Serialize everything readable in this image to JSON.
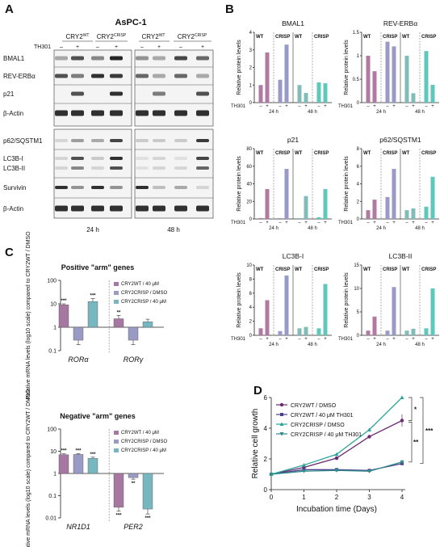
{
  "panel_labels": {
    "a": "A",
    "b": "B",
    "c": "C",
    "d": "D"
  },
  "panelA": {
    "title": "AsPC-1",
    "group_wt": "CRY2",
    "group_wt_sup": "WT",
    "group_crisp": "CRY2",
    "group_crisp_sup": "CRISP",
    "treatment": "TH301",
    "minus": "–",
    "plus": "+",
    "time_24": "24 h",
    "time_48": "48 h",
    "rows_top": [
      "BMAL1",
      "REV-ERBα",
      "p21",
      "β-Actin"
    ],
    "rows_bottom": [
      "p62/SQSTM1",
      "LC3B-I",
      "LC3B-II",
      "Survivin",
      "β-Actin"
    ]
  },
  "panelB": {
    "ylabel": "Relative protein levels",
    "treatment": "TH301",
    "group_wt": "WT",
    "group_crisp": "CRISP",
    "minus": "–",
    "plus": "+",
    "time_24": "24 h",
    "time_48": "48 h",
    "colors": [
      "#b07aa1",
      "#9a99c8",
      "#82bcb8",
      "#5ec9bb"
    ]
  },
  "panelC": {
    "ylabel": "Relative mRNA levels (log10 scale) compared to CRY2WT / DMSO",
    "legend": [
      "CRY2WT / 40 μM",
      "CRY2CRISP / DMSO",
      "CRY2CRISP / 40 μM"
    ],
    "colors": [
      "#a677a0",
      "#9a9bc4",
      "#77b8c0"
    ]
  },
  "panelD": {
    "colors": [
      "#6a2a6f",
      "#4a3f8f",
      "#2aa59a",
      "#2f8d8a"
    ],
    "legend": [
      "CRY2WT / DMSO",
      "CRY2WT / 40 μM TH301",
      "CRY2CRISP / DMSO",
      "CRY2CRISP / 40 μM TH301"
    ],
    "sig_1": "*",
    "sig_2": "**",
    "sig_3": "***"
  },
  "chart_data": [
    {
      "type": "bar",
      "title": "BMAL1",
      "ylabel": "Relative protein levels",
      "ylim": [
        0,
        4
      ],
      "yticks": [
        0,
        1,
        2,
        3,
        4
      ],
      "categories": [
        "24 h WT –",
        "24 h WT +",
        "24 h CRISP –",
        "24 h CRISP +",
        "48 h WT –",
        "48 h WT +",
        "48 h CRISP –",
        "48 h CRISP +"
      ],
      "values": [
        1.0,
        2.85,
        1.3,
        3.3,
        1.0,
        0.55,
        1.15,
        1.1
      ]
    },
    {
      "type": "bar",
      "title": "REV-ERBα",
      "ylabel": "Relative protein levels",
      "ylim": [
        0,
        1.5
      ],
      "yticks": [
        0.0,
        0.5,
        1.0,
        1.5
      ],
      "categories": [
        "24 h WT –",
        "24 h WT +",
        "24 h CRISP –",
        "24 h CRISP +",
        "48 h WT –",
        "48 h WT +",
        "48 h CRISP –",
        "48 h CRISP +"
      ],
      "values": [
        1.0,
        0.67,
        1.3,
        1.2,
        1.0,
        0.2,
        1.1,
        0.38
      ]
    },
    {
      "type": "bar",
      "title": "p21",
      "ylabel": "Relative protein levels",
      "ylim": [
        0,
        80
      ],
      "yticks": [
        0,
        20,
        40,
        60,
        80
      ],
      "categories": [
        "24 h WT –",
        "24 h WT +",
        "24 h CRISP –",
        "24 h CRISP +",
        "48 h WT –",
        "48 h WT +",
        "48 h CRISP –",
        "48 h CRISP +"
      ],
      "values": [
        1,
        34,
        1,
        57,
        1,
        26,
        2,
        34
      ]
    },
    {
      "type": "bar",
      "title": "p62/SQSTM1",
      "ylabel": "Relative protein levels",
      "ylim": [
        0,
        8
      ],
      "yticks": [
        0,
        2,
        4,
        6,
        8
      ],
      "categories": [
        "24 h WT –",
        "24 h WT +",
        "24 h CRISP –",
        "24 h CRISP +",
        "48 h WT –",
        "48 h WT +",
        "48 h CRISP –",
        "48 h CRISP +"
      ],
      "values": [
        1.0,
        2.2,
        2.5,
        5.7,
        1.0,
        1.2,
        1.4,
        4.8
      ]
    },
    {
      "type": "bar",
      "title": "LC3B-I",
      "ylabel": "Relative protein levels",
      "ylim": [
        0,
        10
      ],
      "yticks": [
        0,
        2,
        4,
        6,
        8,
        10
      ],
      "categories": [
        "24 h WT –",
        "24 h WT +",
        "24 h CRISP –",
        "24 h CRISP +",
        "48 h WT –",
        "48 h WT +",
        "48 h CRISP –",
        "48 h CRISP +"
      ],
      "values": [
        1.0,
        5.0,
        0.6,
        8.5,
        1.0,
        1.2,
        1.0,
        7.3
      ]
    },
    {
      "type": "bar",
      "title": "LC3B-II",
      "ylabel": "Relative protein levels",
      "ylim": [
        0,
        15
      ],
      "yticks": [
        0,
        5,
        10,
        15
      ],
      "categories": [
        "24 h WT –",
        "24 h WT +",
        "24 h CRISP –",
        "24 h CRISP +",
        "48 h WT –",
        "48 h WT +",
        "48 h CRISP –",
        "48 h CRISP +"
      ],
      "values": [
        1.0,
        4.0,
        1.0,
        10.3,
        1.0,
        1.4,
        1.5,
        10.0
      ]
    },
    {
      "type": "bar",
      "title": "Positive \"arm\" genes",
      "ylabel": "Relative mRNA levels (log10 scale) compared to CRY2WT / DMSO",
      "yscale": "log",
      "ylim": [
        0.1,
        100
      ],
      "yticks": [
        0.1,
        1,
        10,
        100
      ],
      "categories": [
        "RORα",
        "RORγ"
      ],
      "series": [
        {
          "name": "CRY2WT / 40 μM",
          "values": [
            9.0,
            2.3
          ],
          "errors": [
            1.0,
            0.9
          ],
          "sig": [
            "***",
            "**"
          ]
        },
        {
          "name": "CRY2CRISP / DMSO",
          "values": [
            0.28,
            0.28
          ],
          "errors": [
            0.1,
            0.1
          ],
          "sig": [
            "",
            ""
          ]
        },
        {
          "name": "CRY2CRISP / 40 μM",
          "values": [
            12.5,
            1.7
          ],
          "errors": [
            4.0,
            0.5
          ],
          "sig": [
            "***",
            ""
          ]
        }
      ]
    },
    {
      "type": "bar",
      "title": "Negative \"arm\" genes",
      "ylabel": "Relative mRNA levels (log10 scale) compared to CRY2WT / DMSO",
      "yscale": "log",
      "ylim": [
        0.01,
        100
      ],
      "yticks": [
        0.01,
        0.1,
        1,
        10,
        100
      ],
      "categories": [
        "NR1D1",
        "PER2"
      ],
      "series": [
        {
          "name": "CRY2WT / 40 μM",
          "values": [
            7.0,
            0.03
          ],
          "errors": [
            0.7,
            0.01
          ],
          "sig": [
            "***",
            "***"
          ]
        },
        {
          "name": "CRY2CRISP / DMSO",
          "values": [
            7.2,
            0.65
          ],
          "errors": [
            0.7,
            0.1
          ],
          "sig": [
            "***",
            "**"
          ]
        },
        {
          "name": "CRY2CRISP / 40 μM",
          "values": [
            4.8,
            0.025
          ],
          "errors": [
            0.6,
            0.01
          ],
          "sig": [
            "***",
            "***"
          ]
        }
      ]
    },
    {
      "type": "line",
      "title": "",
      "xlabel": "Incubation time (Days)",
      "ylabel": "Relative cell growth",
      "xlim": [
        0,
        4
      ],
      "ylim": [
        0,
        6
      ],
      "xticks": [
        0,
        1,
        2,
        3,
        4
      ],
      "yticks": [
        0,
        2,
        4,
        6
      ],
      "x": [
        0,
        1,
        2,
        3,
        4
      ],
      "series": [
        {
          "name": "CRY2WT / DMSO",
          "values": [
            1.0,
            1.45,
            2.05,
            3.45,
            4.5
          ],
          "errors": [
            0,
            0.1,
            0.1,
            0.1,
            0.4
          ]
        },
        {
          "name": "CRY2WT / 40 μM TH301",
          "values": [
            1.0,
            1.3,
            1.3,
            1.25,
            1.7
          ],
          "errors": [
            0,
            0.1,
            0.1,
            0.1,
            0.1
          ]
        },
        {
          "name": "CRY2CRISP / DMSO",
          "values": [
            1.0,
            1.6,
            2.3,
            3.9,
            6.0
          ],
          "errors": [
            0,
            0.1,
            0.1,
            0.1,
            0.1
          ]
        },
        {
          "name": "CRY2CRISP / 40 μM TH301",
          "values": [
            1.0,
            1.2,
            1.25,
            1.2,
            1.8
          ],
          "errors": [
            0,
            0.1,
            0.1,
            0.1,
            0.1
          ]
        }
      ]
    }
  ]
}
